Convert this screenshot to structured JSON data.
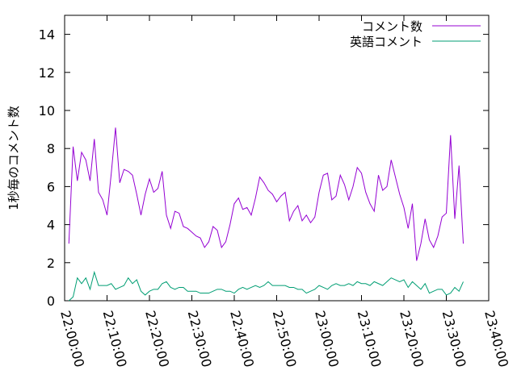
{
  "chart_data": {
    "type": "line",
    "ylabel": "1秒毎のコメント数",
    "xlim": [
      "22:00:00",
      "23:40:00"
    ],
    "xticks": [
      "22:00:00",
      "22:10:00",
      "22:20:00",
      "22:30:00",
      "22:40:00",
      "22:50:00",
      "23:00:00",
      "23:10:00",
      "23:20:00",
      "23:30:00",
      "23:40:00"
    ],
    "ylim": [
      0,
      15
    ],
    "yticks": [
      0,
      2,
      4,
      6,
      8,
      10,
      12,
      14
    ],
    "legend_position": "top-right",
    "x": [
      "22:01:00",
      "22:02:00",
      "22:03:00",
      "22:04:00",
      "22:05:00",
      "22:06:00",
      "22:07:00",
      "22:08:00",
      "22:09:00",
      "22:10:00",
      "22:11:00",
      "22:12:00",
      "22:13:00",
      "22:14:00",
      "22:15:00",
      "22:16:00",
      "22:17:00",
      "22:18:00",
      "22:19:00",
      "22:20:00",
      "22:21:00",
      "22:22:00",
      "22:23:00",
      "22:24:00",
      "22:25:00",
      "22:26:00",
      "22:27:00",
      "22:28:00",
      "22:29:00",
      "22:30:00",
      "22:31:00",
      "22:32:00",
      "22:33:00",
      "22:34:00",
      "22:35:00",
      "22:36:00",
      "22:37:00",
      "22:38:00",
      "22:39:00",
      "22:40:00",
      "22:41:00",
      "22:42:00",
      "22:43:00",
      "22:44:00",
      "22:45:00",
      "22:46:00",
      "22:47:00",
      "22:48:00",
      "22:49:00",
      "22:50:00",
      "22:51:00",
      "22:52:00",
      "22:53:00",
      "22:54:00",
      "22:55:00",
      "22:56:00",
      "22:57:00",
      "22:58:00",
      "22:59:00",
      "23:00:00",
      "23:01:00",
      "23:02:00",
      "23:03:00",
      "23:04:00",
      "23:05:00",
      "23:06:00",
      "23:07:00",
      "23:08:00",
      "23:09:00",
      "23:10:00",
      "23:11:00",
      "23:12:00",
      "23:13:00",
      "23:14:00",
      "23:15:00",
      "23:16:00",
      "23:17:00",
      "23:18:00",
      "23:19:00",
      "23:20:00",
      "23:21:00",
      "23:22:00",
      "23:23:00",
      "23:24:00",
      "23:25:00",
      "23:26:00",
      "23:27:00",
      "23:28:00",
      "23:29:00",
      "23:30:00",
      "23:31:00",
      "23:32:00",
      "23:33:00",
      "23:34:00"
    ],
    "series": [
      {
        "name": "コメント数",
        "color": "#9400d3",
        "values": [
          3.0,
          8.1,
          6.3,
          7.8,
          7.4,
          6.3,
          8.5,
          5.7,
          5.3,
          4.5,
          6.7,
          9.1,
          6.2,
          6.9,
          6.8,
          6.6,
          5.6,
          4.5,
          5.6,
          6.4,
          5.7,
          5.9,
          6.8,
          4.5,
          3.8,
          4.7,
          4.6,
          3.9,
          3.8,
          3.6,
          3.4,
          3.3,
          2.8,
          3.1,
          3.9,
          3.7,
          2.8,
          3.1,
          4.0,
          5.1,
          5.4,
          4.8,
          4.9,
          4.5,
          5.4,
          6.5,
          6.2,
          5.8,
          5.6,
          5.2,
          5.5,
          5.7,
          4.2,
          4.7,
          5.0,
          4.2,
          4.5,
          4.1,
          4.4,
          5.7,
          6.6,
          6.7,
          5.3,
          5.5,
          6.6,
          6.1,
          5.3,
          6.0,
          7.0,
          6.7,
          5.7,
          5.1,
          4.7,
          6.6,
          5.8,
          6.0,
          7.4,
          6.5,
          5.6,
          4.9,
          3.8,
          5.1,
          2.1,
          3.0,
          4.3,
          3.2,
          2.8,
          3.4,
          4.4,
          4.6,
          8.7,
          4.3,
          7.1,
          3.0
        ]
      },
      {
        "name": "英語コメント",
        "color": "#009e73",
        "values": [
          0,
          0.2,
          1.2,
          0.9,
          1.2,
          0.6,
          1.5,
          0.8,
          0.8,
          0.8,
          0.9,
          0.6,
          0.7,
          0.8,
          1.2,
          0.9,
          1.1,
          0.5,
          0.3,
          0.5,
          0.6,
          0.6,
          0.9,
          1.0,
          0.7,
          0.6,
          0.7,
          0.7,
          0.5,
          0.5,
          0.5,
          0.4,
          0.4,
          0.4,
          0.5,
          0.6,
          0.6,
          0.5,
          0.5,
          0.4,
          0.6,
          0.7,
          0.6,
          0.7,
          0.8,
          0.7,
          0.8,
          1.0,
          0.8,
          0.8,
          0.8,
          0.8,
          0.7,
          0.7,
          0.6,
          0.6,
          0.4,
          0.5,
          0.6,
          0.8,
          0.7,
          0.6,
          0.8,
          0.9,
          0.8,
          0.8,
          0.9,
          0.8,
          1.0,
          0.9,
          0.9,
          0.8,
          1.0,
          0.9,
          0.8,
          1.0,
          1.2,
          1.1,
          1.0,
          1.1,
          0.7,
          1.0,
          0.8,
          0.6,
          0.9,
          0.4,
          0.5,
          0.6,
          0.6,
          0.3,
          0.4,
          0.7,
          0.5,
          1.0
        ]
      }
    ]
  }
}
